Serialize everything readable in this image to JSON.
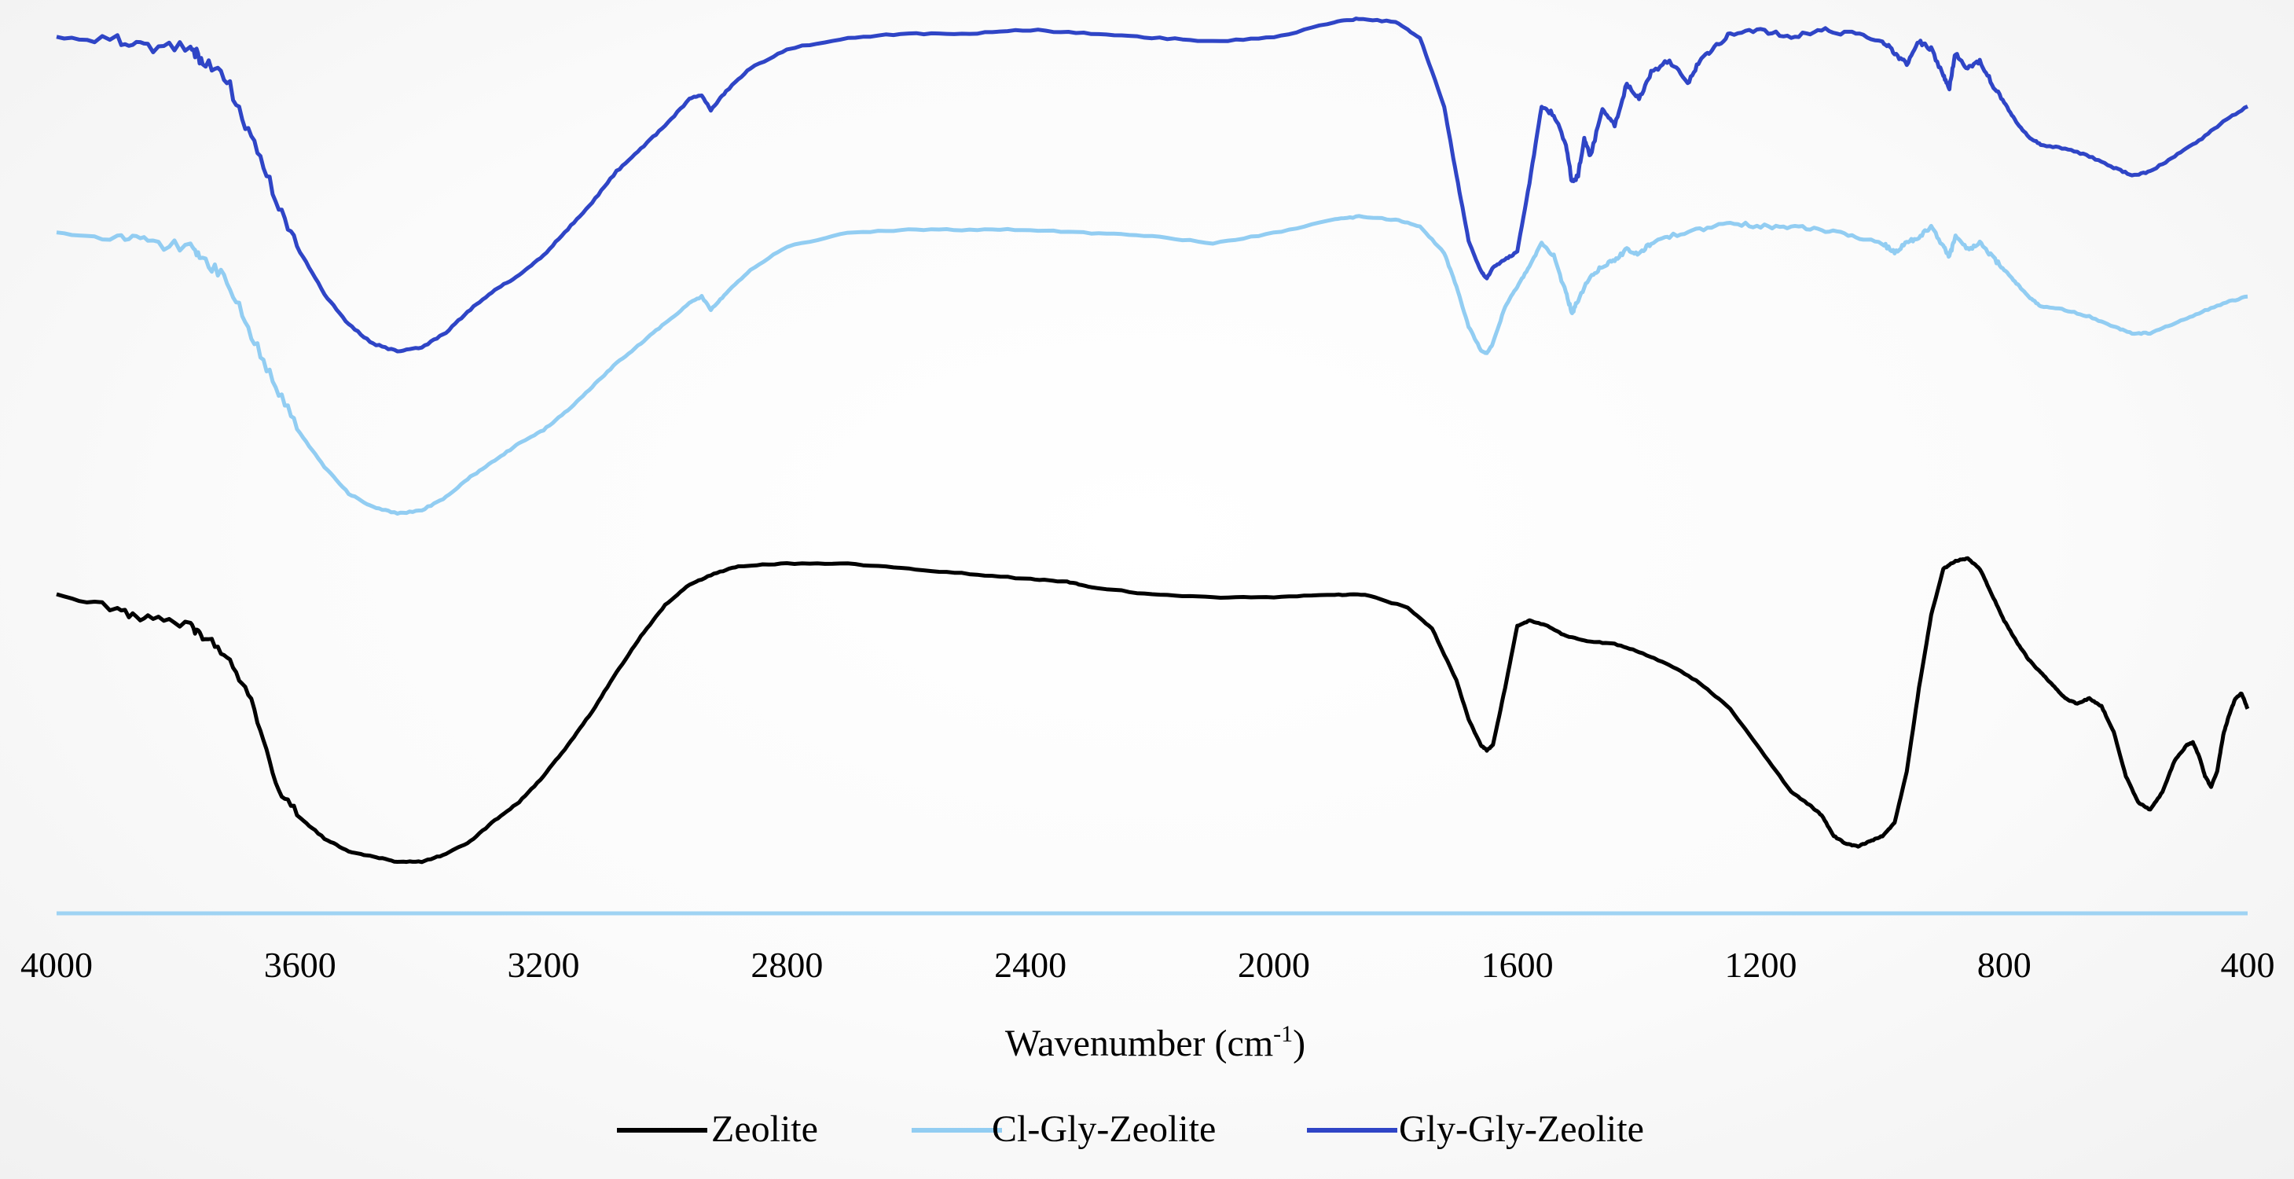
{
  "chart_data": {
    "type": "line",
    "title": "",
    "xlabel": "Wavenumber (cm",
    "xlabel_sup": "-1",
    "xlabel_close": ")",
    "ylabel": "",
    "xlim": [
      4000,
      400
    ],
    "x_reversed": true,
    "grid": false,
    "x_ticks": [
      "4000",
      "3600",
      "3200",
      "2800",
      "2400",
      "2000",
      "1600",
      "1200",
      "800",
      "400"
    ],
    "x_tick_values": [
      4000,
      3600,
      3200,
      2800,
      2400,
      2000,
      1600,
      1200,
      800,
      400
    ],
    "legend_position": "bottom",
    "series": [
      {
        "name": "Zeolite",
        "color": "#000000",
        "points": [
          [
            4000,
            0.52
          ],
          [
            3900,
            0.58
          ],
          [
            3850,
            0.61
          ],
          [
            3780,
            0.64
          ],
          [
            3760,
            0.68
          ],
          [
            3720,
            0.75
          ],
          [
            3680,
            0.92
          ],
          [
            3640,
            1.25
          ],
          [
            3600,
            1.38
          ],
          [
            3560,
            1.46
          ],
          [
            3520,
            1.51
          ],
          [
            3480,
            1.53
          ],
          [
            3440,
            1.55
          ],
          [
            3400,
            1.55
          ],
          [
            3360,
            1.52
          ],
          [
            3320,
            1.47
          ],
          [
            3280,
            1.39
          ],
          [
            3240,
            1.32
          ],
          [
            3200,
            1.22
          ],
          [
            3160,
            1.1
          ],
          [
            3120,
            0.97
          ],
          [
            3080,
            0.82
          ],
          [
            3040,
            0.68
          ],
          [
            3000,
            0.56
          ],
          [
            2960,
            0.48
          ],
          [
            2920,
            0.44
          ],
          [
            2880,
            0.41
          ],
          [
            2800,
            0.4
          ],
          [
            2700,
            0.4
          ],
          [
            2600,
            0.42
          ],
          [
            2500,
            0.44
          ],
          [
            2400,
            0.46
          ],
          [
            2340,
            0.47
          ],
          [
            2300,
            0.49
          ],
          [
            2200,
            0.52
          ],
          [
            2100,
            0.53
          ],
          [
            2000,
            0.53
          ],
          [
            1900,
            0.52
          ],
          [
            1850,
            0.52
          ],
          [
            1780,
            0.57
          ],
          [
            1740,
            0.65
          ],
          [
            1700,
            0.85
          ],
          [
            1680,
            1.0
          ],
          [
            1660,
            1.1
          ],
          [
            1650,
            1.12
          ],
          [
            1640,
            1.1
          ],
          [
            1620,
            0.88
          ],
          [
            1600,
            0.64
          ],
          [
            1580,
            0.62
          ],
          [
            1550,
            0.64
          ],
          [
            1520,
            0.68
          ],
          [
            1480,
            0.7
          ],
          [
            1440,
            0.71
          ],
          [
            1400,
            0.74
          ],
          [
            1350,
            0.79
          ],
          [
            1300,
            0.86
          ],
          [
            1250,
            0.96
          ],
          [
            1200,
            1.12
          ],
          [
            1150,
            1.28
          ],
          [
            1120,
            1.33
          ],
          [
            1100,
            1.37
          ],
          [
            1080,
            1.45
          ],
          [
            1060,
            1.48
          ],
          [
            1040,
            1.49
          ],
          [
            1020,
            1.47
          ],
          [
            1000,
            1.45
          ],
          [
            980,
            1.4
          ],
          [
            960,
            1.2
          ],
          [
            940,
            0.88
          ],
          [
            920,
            0.6
          ],
          [
            900,
            0.42
          ],
          [
            880,
            0.39
          ],
          [
            860,
            0.38
          ],
          [
            840,
            0.42
          ],
          [
            820,
            0.52
          ],
          [
            800,
            0.62
          ],
          [
            780,
            0.7
          ],
          [
            760,
            0.77
          ],
          [
            740,
            0.82
          ],
          [
            720,
            0.87
          ],
          [
            700,
            0.92
          ],
          [
            680,
            0.94
          ],
          [
            660,
            0.92
          ],
          [
            640,
            0.95
          ],
          [
            620,
            1.05
          ],
          [
            600,
            1.22
          ],
          [
            580,
            1.32
          ],
          [
            560,
            1.35
          ],
          [
            540,
            1.28
          ],
          [
            520,
            1.16
          ],
          [
            500,
            1.1
          ],
          [
            490,
            1.09
          ],
          [
            480,
            1.14
          ],
          [
            470,
            1.22
          ],
          [
            460,
            1.26
          ],
          [
            450,
            1.2
          ],
          [
            440,
            1.06
          ],
          [
            430,
            0.98
          ],
          [
            420,
            0.92
          ],
          [
            410,
            0.9
          ],
          [
            400,
            0.96
          ]
        ]
      },
      {
        "name": "Cl-Gly-Zeolite",
        "color": "#92cdf2",
        "points": [
          [
            4000,
            0.02
          ],
          [
            3900,
            0.04
          ],
          [
            3850,
            0.05
          ],
          [
            3780,
            0.06
          ],
          [
            3760,
            0.1
          ],
          [
            3720,
            0.16
          ],
          [
            3680,
            0.32
          ],
          [
            3640,
            0.48
          ],
          [
            3600,
            0.62
          ],
          [
            3560,
            0.72
          ],
          [
            3520,
            0.8
          ],
          [
            3480,
            0.84
          ],
          [
            3440,
            0.86
          ],
          [
            3400,
            0.85
          ],
          [
            3360,
            0.81
          ],
          [
            3320,
            0.75
          ],
          [
            3280,
            0.7
          ],
          [
            3240,
            0.65
          ],
          [
            3200,
            0.61
          ],
          [
            3160,
            0.55
          ],
          [
            3120,
            0.48
          ],
          [
            3080,
            0.41
          ],
          [
            3040,
            0.35
          ],
          [
            3000,
            0.29
          ],
          [
            2960,
            0.23
          ],
          [
            2940,
            0.21
          ],
          [
            2925,
            0.25
          ],
          [
            2900,
            0.2
          ],
          [
            2860,
            0.13
          ],
          [
            2800,
            0.06
          ],
          [
            2700,
            0.02
          ],
          [
            2600,
            0.01
          ],
          [
            2500,
            0.01
          ],
          [
            2400,
            0.01
          ],
          [
            2300,
            0.02
          ],
          [
            2200,
            0.03
          ],
          [
            2100,
            0.05
          ],
          [
            2000,
            0.02
          ],
          [
            1900,
            -0.02
          ],
          [
            1860,
            -0.03
          ],
          [
            1800,
            -0.02
          ],
          [
            1760,
            0.0
          ],
          [
            1720,
            0.08
          ],
          [
            1700,
            0.18
          ],
          [
            1680,
            0.3
          ],
          [
            1660,
            0.37
          ],
          [
            1650,
            0.38
          ],
          [
            1640,
            0.35
          ],
          [
            1620,
            0.24
          ],
          [
            1600,
            0.18
          ],
          [
            1580,
            0.12
          ],
          [
            1560,
            0.05
          ],
          [
            1540,
            0.09
          ],
          [
            1520,
            0.2
          ],
          [
            1510,
            0.26
          ],
          [
            1500,
            0.22
          ],
          [
            1480,
            0.15
          ],
          [
            1460,
            0.12
          ],
          [
            1440,
            0.1
          ],
          [
            1420,
            0.07
          ],
          [
            1400,
            0.08
          ],
          [
            1380,
            0.05
          ],
          [
            1350,
            0.03
          ],
          [
            1300,
            0.01
          ],
          [
            1250,
            -0.01
          ],
          [
            1200,
            0.0
          ],
          [
            1150,
            0.0
          ],
          [
            1100,
            0.01
          ],
          [
            1050,
            0.03
          ],
          [
            1000,
            0.05
          ],
          [
            980,
            0.08
          ],
          [
            960,
            0.05
          ],
          [
            940,
            0.03
          ],
          [
            920,
            0.0
          ],
          [
            900,
            0.06
          ],
          [
            890,
            0.09
          ],
          [
            880,
            0.03
          ],
          [
            860,
            0.07
          ],
          [
            840,
            0.05
          ],
          [
            820,
            0.09
          ],
          [
            800,
            0.13
          ],
          [
            780,
            0.17
          ],
          [
            760,
            0.21
          ],
          [
            740,
            0.24
          ],
          [
            700,
            0.25
          ],
          [
            660,
            0.27
          ],
          [
            620,
            0.3
          ],
          [
            590,
            0.32
          ],
          [
            560,
            0.32
          ],
          [
            520,
            0.29
          ],
          [
            480,
            0.26
          ],
          [
            440,
            0.23
          ],
          [
            400,
            0.21
          ]
        ]
      },
      {
        "name": "Gly-Gly-Zeolite",
        "color": "#2f45c6",
        "points": [
          [
            4000,
            0.02
          ],
          [
            3900,
            0.03
          ],
          [
            3850,
            0.04
          ],
          [
            3780,
            0.05
          ],
          [
            3760,
            0.08
          ],
          [
            3720,
            0.13
          ],
          [
            3680,
            0.28
          ],
          [
            3640,
            0.44
          ],
          [
            3600,
            0.58
          ],
          [
            3560,
            0.69
          ],
          [
            3520,
            0.77
          ],
          [
            3480,
            0.82
          ],
          [
            3440,
            0.84
          ],
          [
            3400,
            0.83
          ],
          [
            3360,
            0.79
          ],
          [
            3320,
            0.73
          ],
          [
            3280,
            0.68
          ],
          [
            3240,
            0.64
          ],
          [
            3200,
            0.59
          ],
          [
            3160,
            0.52
          ],
          [
            3120,
            0.45
          ],
          [
            3080,
            0.37
          ],
          [
            3040,
            0.31
          ],
          [
            3000,
            0.25
          ],
          [
            2960,
            0.18
          ],
          [
            2940,
            0.17
          ],
          [
            2925,
            0.21
          ],
          [
            2900,
            0.16
          ],
          [
            2860,
            0.1
          ],
          [
            2800,
            0.05
          ],
          [
            2700,
            0.02
          ],
          [
            2600,
            0.01
          ],
          [
            2500,
            0.01
          ],
          [
            2400,
            0.0
          ],
          [
            2300,
            0.01
          ],
          [
            2200,
            0.02
          ],
          [
            2100,
            0.03
          ],
          [
            2000,
            0.02
          ],
          [
            1900,
            -0.02
          ],
          [
            1860,
            -0.03
          ],
          [
            1800,
            -0.02
          ],
          [
            1760,
            0.02
          ],
          [
            1720,
            0.2
          ],
          [
            1700,
            0.38
          ],
          [
            1680,
            0.55
          ],
          [
            1660,
            0.63
          ],
          [
            1650,
            0.65
          ],
          [
            1640,
            0.62
          ],
          [
            1620,
            0.6
          ],
          [
            1600,
            0.58
          ],
          [
            1580,
            0.4
          ],
          [
            1560,
            0.2
          ],
          [
            1540,
            0.22
          ],
          [
            1520,
            0.3
          ],
          [
            1510,
            0.4
          ],
          [
            1500,
            0.38
          ],
          [
            1490,
            0.28
          ],
          [
            1480,
            0.33
          ],
          [
            1460,
            0.21
          ],
          [
            1440,
            0.25
          ],
          [
            1420,
            0.14
          ],
          [
            1400,
            0.18
          ],
          [
            1380,
            0.11
          ],
          [
            1350,
            0.08
          ],
          [
            1320,
            0.14
          ],
          [
            1300,
            0.08
          ],
          [
            1280,
            0.05
          ],
          [
            1250,
            0.01
          ],
          [
            1200,
            0.0
          ],
          [
            1150,
            0.02
          ],
          [
            1100,
            0.0
          ],
          [
            1050,
            0.01
          ],
          [
            1000,
            0.03
          ],
          [
            980,
            0.06
          ],
          [
            960,
            0.09
          ],
          [
            940,
            0.03
          ],
          [
            920,
            0.05
          ],
          [
            900,
            0.12
          ],
          [
            890,
            0.15
          ],
          [
            880,
            0.06
          ],
          [
            860,
            0.1
          ],
          [
            840,
            0.08
          ],
          [
            820,
            0.14
          ],
          [
            800,
            0.19
          ],
          [
            780,
            0.24
          ],
          [
            760,
            0.28
          ],
          [
            740,
            0.3
          ],
          [
            700,
            0.31
          ],
          [
            660,
            0.33
          ],
          [
            620,
            0.36
          ],
          [
            590,
            0.38
          ],
          [
            560,
            0.37
          ],
          [
            520,
            0.33
          ],
          [
            480,
            0.29
          ],
          [
            440,
            0.24
          ],
          [
            400,
            0.2
          ]
        ]
      }
    ]
  }
}
